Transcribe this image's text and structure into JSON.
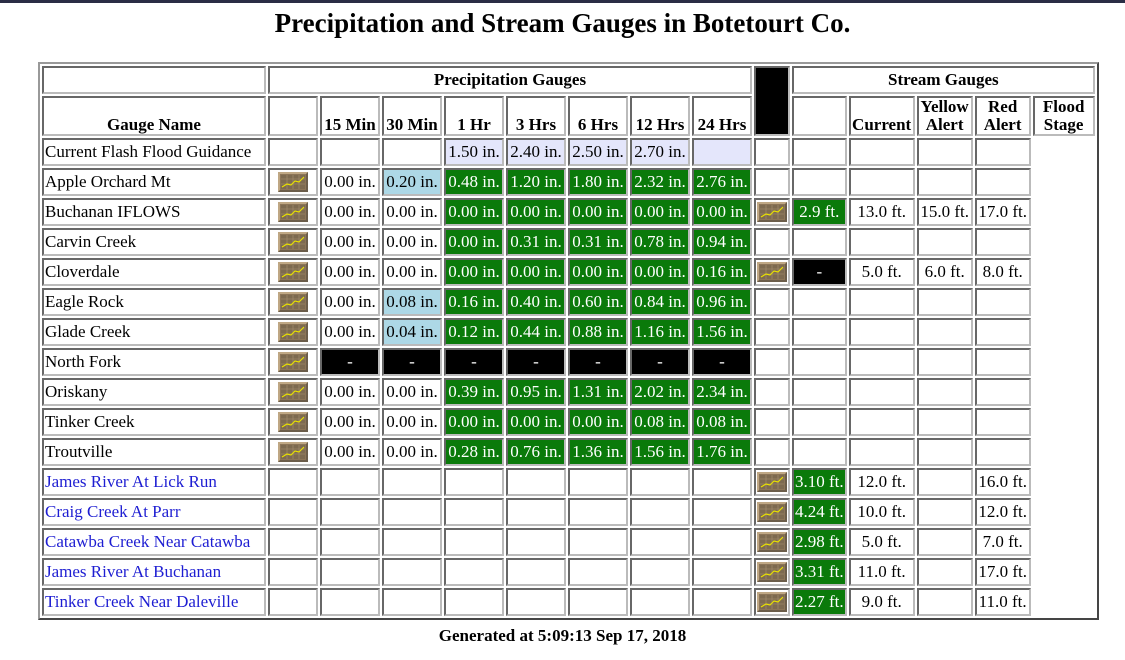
{
  "title": "Precipitation and Stream Gauges in Botetourt Co.",
  "groups": {
    "precip": "Precipitation Gauges",
    "stream": "Stream Gauges"
  },
  "headers": {
    "gauge_name": "Gauge Name",
    "m15": "15 Min",
    "m30": "30 Min",
    "h1": "1 Hr",
    "h3": "3 Hrs",
    "h6": "6 Hrs",
    "h12": "12 Hrs",
    "h24": "24 Hrs",
    "current": "Current",
    "yellow1": "Yellow",
    "yellow2": "Alert",
    "red1": "Red",
    "red2": "Alert",
    "flood1": "Flood",
    "flood2": "Stage"
  },
  "guidance": {
    "name": "Current Flash Flood Guidance",
    "h1": "1.50 in.",
    "h3": "2.40 in.",
    "h6": "2.50 in.",
    "h12": "2.70 in."
  },
  "rows": [
    {
      "name": "Apple Orchard Mt",
      "m15": "0.00 in.",
      "m30": "0.20 in.",
      "h1": "0.48 in.",
      "h3": "1.20 in.",
      "h6": "1.80 in.",
      "h12": "2.32 in.",
      "h24": "2.76 in."
    },
    {
      "name": "Buchanan IFLOWS",
      "m15": "0.00 in.",
      "m30": "0.00 in.",
      "h1": "0.00 in.",
      "h3": "0.00 in.",
      "h6": "0.00 in.",
      "h12": "0.00 in.",
      "h24": "0.00 in.",
      "current": "2.9 ft.",
      "yellow": "13.0 ft.",
      "red": "15.0 ft.",
      "flood": "17.0 ft."
    },
    {
      "name": "Carvin Creek",
      "m15": "0.00 in.",
      "m30": "0.00 in.",
      "h1": "0.00 in.",
      "h3": "0.31 in.",
      "h6": "0.31 in.",
      "h12": "0.78 in.",
      "h24": "0.94 in."
    },
    {
      "name": "Cloverdale",
      "m15": "0.00 in.",
      "m30": "0.00 in.",
      "h1": "0.00 in.",
      "h3": "0.00 in.",
      "h6": "0.00 in.",
      "h12": "0.00 in.",
      "h24": "0.16 in.",
      "current": "-",
      "yellow": "5.0 ft.",
      "red": "6.0 ft.",
      "flood": "8.0 ft."
    },
    {
      "name": "Eagle Rock",
      "m15": "0.00 in.",
      "m30": "0.08 in.",
      "h1": "0.16 in.",
      "h3": "0.40 in.",
      "h6": "0.60 in.",
      "h12": "0.84 in.",
      "h24": "0.96 in."
    },
    {
      "name": "Glade Creek",
      "m15": "0.00 in.",
      "m30": "0.04 in.",
      "h1": "0.12 in.",
      "h3": "0.44 in.",
      "h6": "0.88 in.",
      "h12": "1.16 in.",
      "h24": "1.56 in."
    },
    {
      "name": "North Fork",
      "m15": "-",
      "m30": "-",
      "h1": "-",
      "h3": "-",
      "h6": "-",
      "h12": "-",
      "h24": "-"
    },
    {
      "name": "Oriskany",
      "m15": "0.00 in.",
      "m30": "0.00 in.",
      "h1": "0.39 in.",
      "h3": "0.95 in.",
      "h6": "1.31 in.",
      "h12": "2.02 in.",
      "h24": "2.34 in."
    },
    {
      "name": "Tinker Creek",
      "m15": "0.00 in.",
      "m30": "0.00 in.",
      "h1": "0.00 in.",
      "h3": "0.00 in.",
      "h6": "0.00 in.",
      "h12": "0.08 in.",
      "h24": "0.08 in."
    },
    {
      "name": "Troutville",
      "m15": "0.00 in.",
      "m30": "0.00 in.",
      "h1": "0.28 in.",
      "h3": "0.76 in.",
      "h6": "1.36 in.",
      "h12": "1.56 in.",
      "h24": "1.76 in."
    }
  ],
  "stream_rows": [
    {
      "name": "James River At Lick Run",
      "current": "3.10 ft.",
      "yellow": "12.0 ft.",
      "flood": "16.0 ft."
    },
    {
      "name": "Craig Creek At Parr",
      "current": "4.24 ft.",
      "yellow": "10.0 ft.",
      "flood": "12.0 ft."
    },
    {
      "name": "Catawba Creek Near Catawba",
      "current": "2.98 ft.",
      "yellow": "5.0 ft.",
      "flood": "7.0 ft."
    },
    {
      "name": "James River At Buchanan",
      "current": "3.31 ft.",
      "yellow": "11.0 ft.",
      "flood": "17.0 ft."
    },
    {
      "name": "Tinker Creek Near Daleville",
      "current": "2.27 ft.",
      "yellow": "9.0 ft.",
      "flood": "11.0 ft."
    }
  ],
  "footer": "Generated at 5:09:13 Sep 17, 2018",
  "colors": {
    "green": "#0a7a0a",
    "light_blue": "#add8e6",
    "lavender": "#e4e6fb",
    "black": "#000000",
    "link": "#1e1ed2"
  },
  "icons": {
    "graph": "graph-icon"
  }
}
